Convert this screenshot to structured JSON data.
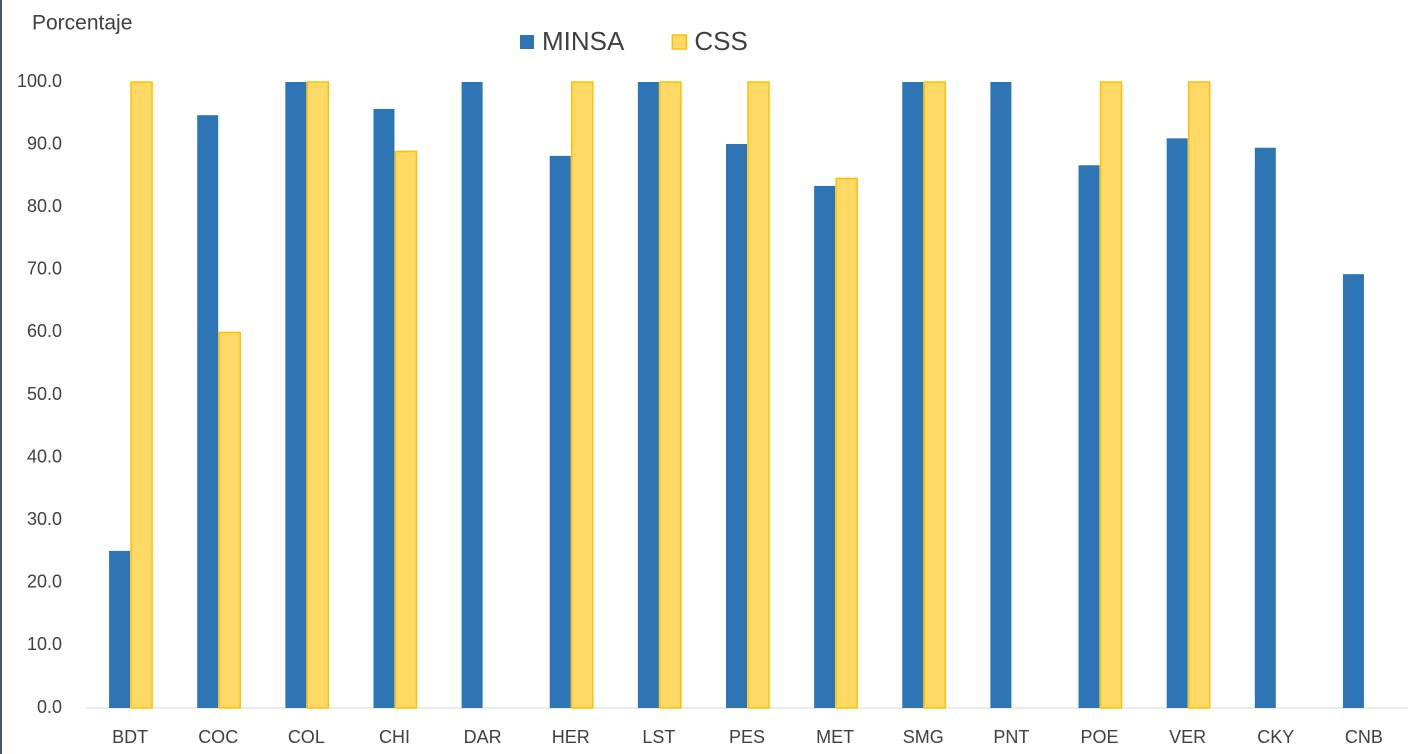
{
  "chart_data": {
    "type": "bar",
    "y_label": "Porcentaje",
    "categories": [
      "BDT",
      "COC",
      "COL",
      "CHI",
      "DAR",
      "HER",
      "LST",
      "PES",
      "MET",
      "SMG",
      "PNT",
      "POE",
      "VER",
      "CKY",
      "CNB"
    ],
    "series": [
      {
        "name": "MINSA",
        "color": "#2e75b6",
        "values": [
          25.1,
          94.7,
          100,
          95.7,
          100,
          88.2,
          100,
          90.1,
          83.4,
          100,
          100,
          86.7,
          91.0,
          89.5,
          69.3
        ]
      },
      {
        "name": "CSS",
        "color": "#ffd966",
        "values": [
          100,
          60,
          100,
          88.9,
          null,
          100,
          100,
          100,
          84.6,
          100,
          null,
          100,
          100,
          null,
          null
        ]
      }
    ],
    "ylim": [
      0,
      100
    ],
    "yticks": [
      {
        "value": 0,
        "label": "0.0"
      },
      {
        "value": 10,
        "label": "10.0"
      },
      {
        "value": 20,
        "label": "20.0"
      },
      {
        "value": 30,
        "label": "30.0"
      },
      {
        "value": 40,
        "label": "40.0"
      },
      {
        "value": 50,
        "label": "50.0"
      },
      {
        "value": 60,
        "label": "60.0"
      },
      {
        "value": 70,
        "label": "70.0"
      },
      {
        "value": 80,
        "label": "80.0"
      },
      {
        "value": 90,
        "label": "90.0"
      },
      {
        "value": 100,
        "label": "100.0"
      }
    ],
    "grid": false,
    "legend": "top"
  }
}
